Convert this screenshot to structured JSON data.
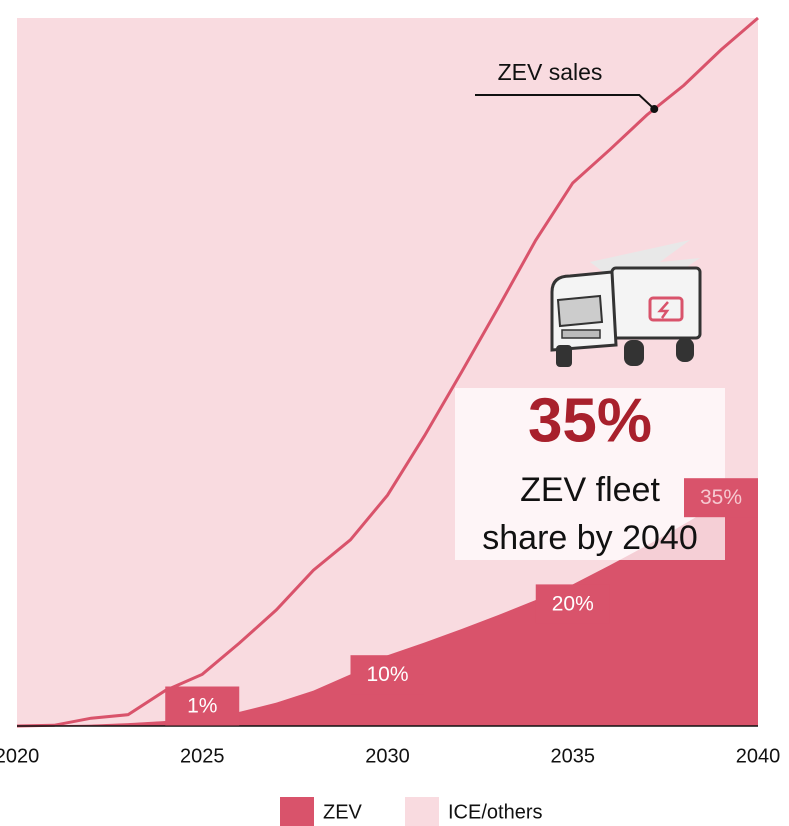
{
  "chart_data": {
    "type": "area",
    "x": [
      2020,
      2021,
      2022,
      2023,
      2024,
      2025,
      2026,
      2027,
      2028,
      2029,
      2030,
      2031,
      2032,
      2033,
      2034,
      2035,
      2036,
      2037,
      2038,
      2039,
      2040
    ],
    "xlim": [
      2020,
      2040
    ],
    "xticks": [
      2020,
      2025,
      2030,
      2035,
      2040
    ],
    "ylim": [
      0,
      100
    ],
    "series": [
      {
        "name": "ZEV",
        "color": "#d9536b",
        "values": [
          0,
          0.1,
          0.2,
          0.4,
          0.7,
          1,
          2,
          3.3,
          5,
          7.3,
          10,
          11.8,
          13.7,
          15.7,
          17.8,
          20,
          22.7,
          25.5,
          28.5,
          31.6,
          35
        ],
        "value_labels": [
          null,
          null,
          null,
          null,
          null,
          "1%",
          null,
          null,
          null,
          null,
          "10%",
          null,
          null,
          null,
          null,
          "20%",
          null,
          null,
          null,
          null,
          "35%"
        ]
      },
      {
        "name": "ICE/others",
        "color": "#f9dbe0",
        "values": [
          100,
          99.9,
          99.8,
          99.6,
          99.3,
          99,
          98,
          96.7,
          95,
          92.7,
          90,
          88.2,
          86.3,
          84.3,
          82.2,
          80,
          77.3,
          74.5,
          71.5,
          68.4,
          65
        ]
      }
    ],
    "line": {
      "name": "ZEV sales",
      "color": "#d9536b",
      "values": [
        0,
        0.1,
        1.1,
        1.6,
        5,
        7.3,
        11.7,
        16.4,
        22,
        26.3,
        32.6,
        41,
        50,
        59.2,
        68.6,
        76.7,
        81.4,
        86.3,
        90.5,
        95.5,
        100
      ]
    },
    "headline": "35%",
    "subline": [
      "ZEV fleet",
      "share by 2040"
    ]
  }
}
